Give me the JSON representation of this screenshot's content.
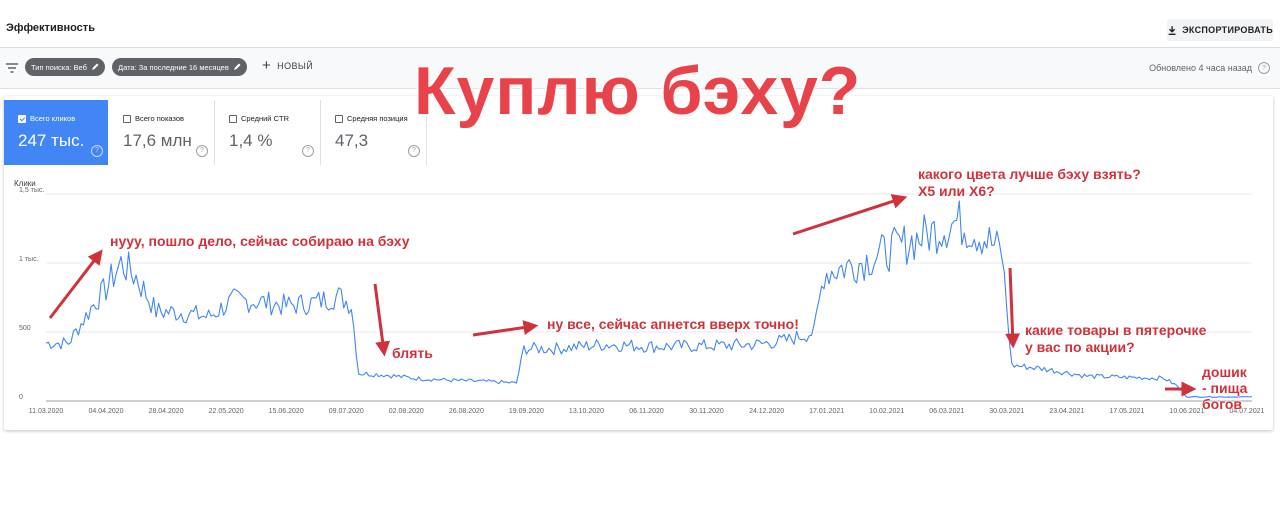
{
  "header": {
    "title": "Эффективность",
    "export_label": "ЭКСПОРТИРОВАТЬ"
  },
  "filters": {
    "chips": [
      "Тип поиска: Веб",
      "Дата: За последние 16 месяцев"
    ],
    "new_label": "НОВЫЙ",
    "updated": "Обновлено 4 часа назад"
  },
  "metrics": [
    {
      "label": "Всего кликов",
      "value": "247 тыс.",
      "checked": true
    },
    {
      "label": "Всего показов",
      "value": "17,6 млн",
      "checked": false
    },
    {
      "label": "Средний CTR",
      "value": "1,4 %",
      "checked": false
    },
    {
      "label": "Средняя позиция",
      "value": "47,3",
      "checked": false
    }
  ],
  "colors": {
    "accent": "#4285f4",
    "annotation": "#d0323b",
    "title_overlay": "#e8434a"
  },
  "overlay": {
    "title": "Куплю бэху?",
    "notes": [
      "нууу, пошло дело, сейчас собираю на бэху",
      "блять",
      "ну все, сейчас апнется вверх точно!",
      "какого цвета лучше бэху взять?",
      "Х5 или Х6?",
      "какие товары в пятерочке",
      "у вас по акции?",
      "дошик",
      "- пища",
      "богов"
    ]
  },
  "chart_data": {
    "type": "line",
    "ylabel": "Клики",
    "y_ticks": [
      "1,5 тыс.",
      "1 тыс.",
      "500",
      "0"
    ],
    "ylim": [
      0,
      1500
    ],
    "grid": true,
    "x_ticks": [
      "11.03.2020",
      "04.04.2020",
      "28.04.2020",
      "22.05.2020",
      "15.06.2020",
      "09.07.2020",
      "02.08.2020",
      "26.08.2020",
      "19.09.2020",
      "13.10.2020",
      "06.11.2020",
      "30.11.2020",
      "24.12.2020",
      "17.01.2021",
      "10.02.2021",
      "06.03.2021",
      "30.03.2021",
      "23.04.2021",
      "17.05.2021",
      "10.06.2021",
      "04.07.2021"
    ],
    "series": [
      {
        "color": "#4285f4",
        "x_start": "11.03.2020",
        "x_end": "06.07.2021",
        "points": [
          [
            "11.03.2020",
            420
          ],
          [
            "20.03.2020",
            420
          ],
          [
            "30.03.2020",
            700
          ],
          [
            "04.04.2020",
            820
          ],
          [
            "10.04.2020",
            1000
          ],
          [
            "16.04.2020",
            900
          ],
          [
            "24.04.2020",
            650
          ],
          [
            "04.05.2020",
            640
          ],
          [
            "15.05.2020",
            610
          ],
          [
            "25.05.2020",
            730
          ],
          [
            "05.06.2020",
            720
          ],
          [
            "15.06.2020",
            690
          ],
          [
            "25.06.2020",
            710
          ],
          [
            "06.07.2020",
            760
          ],
          [
            "11.07.2020",
            700
          ],
          [
            "14.07.2020",
            200
          ],
          [
            "24.07.2020",
            190
          ],
          [
            "05.08.2020",
            165
          ],
          [
            "20.08.2020",
            150
          ],
          [
            "05.09.2020",
            140
          ],
          [
            "15.09.2020",
            130
          ],
          [
            "18.09.2020",
            380
          ],
          [
            "01.10.2020",
            380
          ],
          [
            "20.10.2020",
            410
          ],
          [
            "10.11.2020",
            395
          ],
          [
            "01.12.2020",
            400
          ],
          [
            "20.12.2020",
            410
          ],
          [
            "01.01.2021",
            440
          ],
          [
            "12.01.2021",
            500
          ],
          [
            "16.01.2021",
            930
          ],
          [
            "30.01.2021",
            1000
          ],
          [
            "15.02.2021",
            1120
          ],
          [
            "01.03.2021",
            1230
          ],
          [
            "10.03.2021",
            1300
          ],
          [
            "20.03.2021",
            1200
          ],
          [
            "28.03.2021",
            1080
          ],
          [
            "01.04.2021",
            260
          ],
          [
            "15.04.2021",
            230
          ],
          [
            "01.05.2021",
            180
          ],
          [
            "20.05.2021",
            170
          ],
          [
            "01.06.2021",
            165
          ],
          [
            "06.06.2021",
            110
          ],
          [
            "10.06.2021",
            30
          ],
          [
            "25.06.2021",
            30
          ],
          [
            "06.07.2021",
            30
          ]
        ]
      }
    ]
  }
}
